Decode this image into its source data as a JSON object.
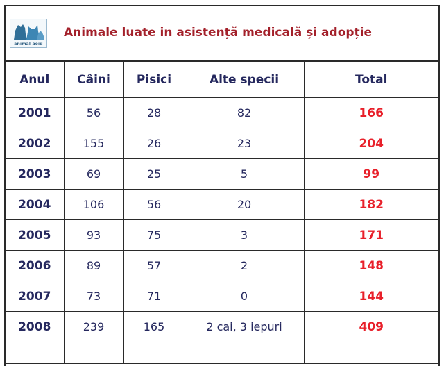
{
  "title": "Animale luate in asistență medicală și adopție",
  "logo": {
    "icon": "animal-heads-logo",
    "text": "animal aoid"
  },
  "colors": {
    "header_text": "#25285e",
    "total_text": "#e8202a",
    "title_text": "#a3202a",
    "grid": "#2a2a2a"
  },
  "table": {
    "headers": {
      "year": "Anul",
      "dogs": "Câini",
      "cats": "Pisici",
      "other": "Alte specii",
      "total": "Total"
    },
    "rows": [
      {
        "year": "2001",
        "dogs": "56",
        "cats": "28",
        "other": "82",
        "total": "166"
      },
      {
        "year": "2002",
        "dogs": "155",
        "cats": "26",
        "other": "23",
        "total": "204"
      },
      {
        "year": "2003",
        "dogs": "69",
        "cats": "25",
        "other": "5",
        "total": "99"
      },
      {
        "year": "2004",
        "dogs": "106",
        "cats": "56",
        "other": "20",
        "total": "182"
      },
      {
        "year": "2005",
        "dogs": "93",
        "cats": "75",
        "other": "3",
        "total": "171"
      },
      {
        "year": "2006",
        "dogs": "89",
        "cats": "57",
        "other": "2",
        "total": "148"
      },
      {
        "year": "2007",
        "dogs": "73",
        "cats": "71",
        "other": "0",
        "total": "144"
      },
      {
        "year": "2008",
        "dogs": "239",
        "cats": "165",
        "other": "2 cai, 3 iepuri",
        "total": "409"
      }
    ]
  }
}
